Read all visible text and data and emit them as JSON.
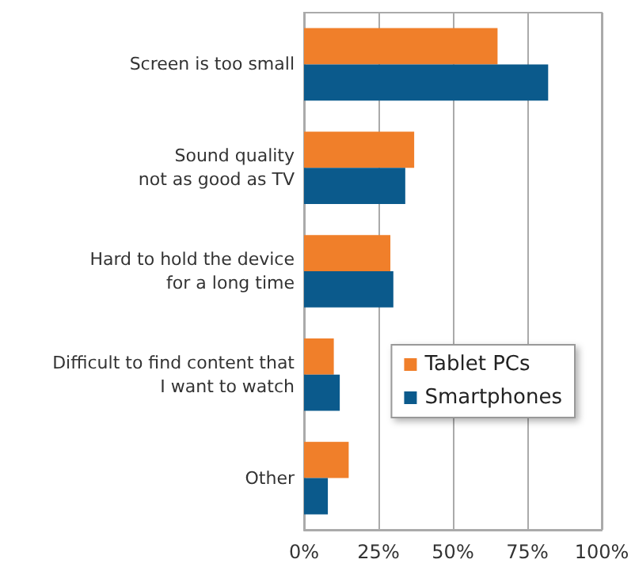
{
  "chart_data": {
    "type": "bar",
    "orientation": "horizontal",
    "categories": [
      "Screen is too small",
      "Sound quality\nnot as good as TV",
      "Hard to hold the device\nfor a long time",
      "Difficult to find content that\nI want to watch",
      "Other"
    ],
    "series": [
      {
        "name": "Tablet PCs",
        "color": "#f07f2a",
        "values": [
          65,
          37,
          29,
          10,
          15
        ]
      },
      {
        "name": "Smartphones",
        "color": "#0b5a8c",
        "values": [
          82,
          34,
          30,
          12,
          8
        ]
      }
    ],
    "xlim": [
      0,
      100
    ],
    "xticks": [
      {
        "value": 0,
        "label": "0%"
      },
      {
        "value": 25,
        "label": "25%"
      },
      {
        "value": 50,
        "label": "50%"
      },
      {
        "value": 75,
        "label": "75%"
      },
      {
        "value": 100,
        "label": "100%"
      }
    ],
    "grid": "x",
    "legend": "right"
  }
}
